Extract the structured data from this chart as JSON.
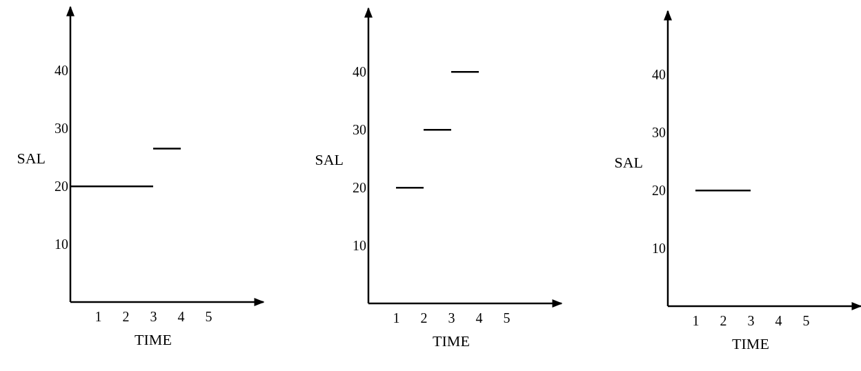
{
  "chart_data": [
    {
      "type": "line",
      "xlabel": "TIME",
      "ylabel": "SAL",
      "xlim": [
        0,
        7
      ],
      "ylim": [
        0,
        51
      ],
      "xticks": [
        1,
        2,
        3,
        4,
        5
      ],
      "yticks": [
        10,
        20,
        30,
        40
      ],
      "marker": "none",
      "line_style": "solid",
      "grid": false,
      "series": [
        {
          "color": "#000000",
          "x": [
            0,
            3
          ],
          "values": [
            20,
            20
          ]
        },
        {
          "color": "#000000",
          "x": [
            3,
            4
          ],
          "values": [
            26.5,
            26.5
          ]
        }
      ]
    },
    {
      "type": "line",
      "xlabel": "TIME",
      "ylabel": "SAL",
      "xlim": [
        0,
        7
      ],
      "ylim": [
        0,
        51
      ],
      "xticks": [
        1,
        2,
        3,
        4,
        5
      ],
      "yticks": [
        10,
        20,
        30,
        40
      ],
      "marker": "none",
      "line_style": "solid",
      "grid": false,
      "series": [
        {
          "color": "#000000",
          "x": [
            1,
            2
          ],
          "values": [
            20,
            20
          ]
        },
        {
          "color": "#000000",
          "x": [
            2,
            3
          ],
          "values": [
            30,
            30
          ]
        },
        {
          "color": "#000000",
          "x": [
            3,
            4
          ],
          "values": [
            40,
            40
          ]
        }
      ]
    },
    {
      "type": "line",
      "xlabel": "TIME",
      "ylabel": "SAL",
      "xlim": [
        0,
        7
      ],
      "ylim": [
        0,
        51
      ],
      "xticks": [
        1,
        2,
        3,
        4,
        5
      ],
      "yticks": [
        10,
        20,
        30,
        40
      ],
      "marker": "none",
      "line_style": "solid",
      "grid": false,
      "series": [
        {
          "color": "#000000",
          "x": [
            1,
            3
          ],
          "values": [
            20,
            20
          ]
        }
      ]
    }
  ]
}
